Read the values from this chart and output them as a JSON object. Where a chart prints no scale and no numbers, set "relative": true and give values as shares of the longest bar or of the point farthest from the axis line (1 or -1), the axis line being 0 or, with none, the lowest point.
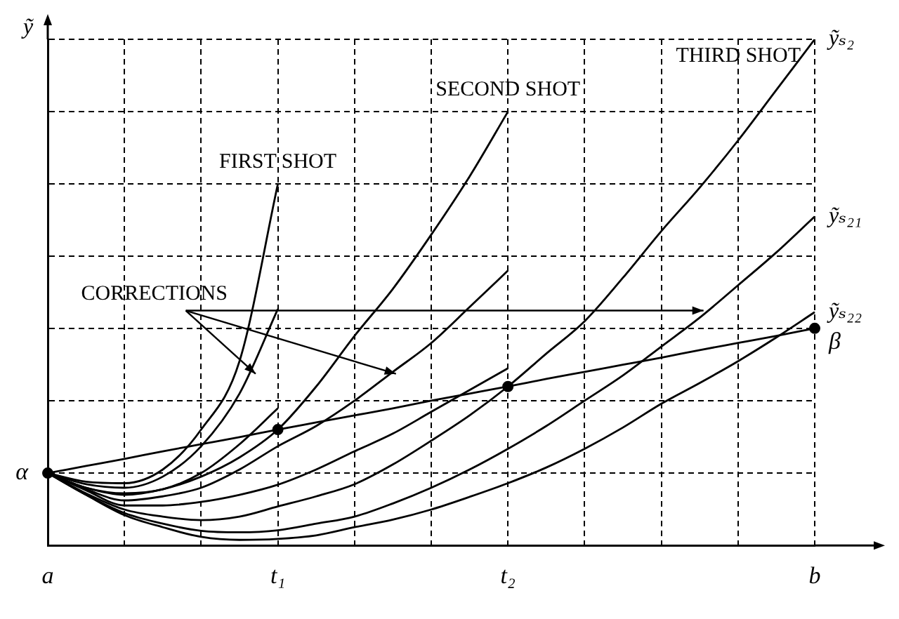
{
  "chart_data": {
    "type": "line",
    "ylabel": "ỹ",
    "relative": true,
    "grid": true,
    "categories": [
      "a",
      null,
      null,
      null,
      null,
      null,
      "t₁",
      null,
      null,
      null,
      null,
      null,
      "t₂",
      null,
      null,
      null,
      null,
      null,
      null,
      null,
      "b"
    ],
    "series": [
      {
        "color": "#000000",
        "values": [
          0.143,
          0.126,
          0.123,
          0.15,
          0.229,
          0.364,
          0.714,
          null,
          null,
          null,
          null,
          null,
          null,
          null,
          null,
          null,
          null,
          null,
          null,
          null,
          null
        ]
      },
      {
        "color": "#000000",
        "values": [
          0.143,
          0.121,
          0.114,
          0.136,
          0.196,
          0.3,
          0.467,
          null,
          null,
          null,
          null,
          null,
          null,
          null,
          null,
          null,
          null,
          null,
          null,
          null,
          null
        ]
      },
      {
        "color": "#000000",
        "values": [
          0.143,
          0.114,
          0.103,
          0.111,
          0.143,
          0.2,
          0.271,
          null,
          null,
          null,
          null,
          null,
          null,
          null,
          null,
          null,
          null,
          null,
          null,
          null,
          null
        ]
      },
      {
        "color": "#000000",
        "values": [
          0.143,
          0.114,
          0.1,
          0.111,
          0.136,
          0.174,
          0.229,
          0.314,
          0.414,
          0.507,
          0.614,
          0.729,
          0.857,
          null,
          null,
          null,
          null,
          null,
          null,
          null,
          null
        ]
      },
      {
        "color": "#000000",
        "values": [
          0.143,
          0.111,
          0.089,
          0.097,
          0.114,
          0.15,
          0.196,
          0.236,
          0.286,
          0.343,
          0.4,
          0.471,
          0.543,
          null,
          null,
          null,
          null,
          null,
          null,
          null,
          null
        ]
      },
      {
        "color": "#000000",
        "values": [
          0.143,
          0.109,
          0.079,
          0.079,
          0.086,
          0.1,
          0.12,
          0.15,
          0.186,
          0.221,
          0.264,
          0.307,
          0.35,
          null,
          null,
          null,
          null,
          null,
          null,
          null,
          null
        ]
      },
      {
        "name": "ỹₛ₂",
        "color": "#000000",
        "values": [
          0.143,
          0.103,
          0.071,
          0.057,
          0.05,
          0.057,
          0.077,
          0.097,
          0.121,
          0.16,
          0.207,
          0.257,
          0.314,
          0.379,
          0.443,
          0.529,
          0.621,
          0.707,
          0.8,
          0.9,
          1
        ]
      },
      {
        "name": "ỹₛ₂₁",
        "color": "#000000",
        "values": [
          0.143,
          0.1,
          0.064,
          0.043,
          0.029,
          0.026,
          0.03,
          0.043,
          0.057,
          0.083,
          0.114,
          0.15,
          0.191,
          0.236,
          0.286,
          0.336,
          0.393,
          0.45,
          0.514,
          0.579,
          0.65
        ]
      },
      {
        "name": "ỹₛ₂₂",
        "color": "#000000",
        "values": [
          0.143,
          0.1,
          0.06,
          0.036,
          0.017,
          0.011,
          0.013,
          0.02,
          0.036,
          0.051,
          0.071,
          0.096,
          0.123,
          0.154,
          0.191,
          0.233,
          0.28,
          0.321,
          0.364,
          0.411,
          0.461
        ]
      },
      {
        "color": "#000000",
        "values": [
          0.143,
          0.157,
          0.171,
          0.186,
          0.2,
          0.214,
          0.229,
          0.243,
          0.257,
          0.271,
          0.286,
          0.3,
          0.314,
          0.329,
          0.343,
          0.357,
          0.371,
          0.386,
          0.4,
          0.414,
          0.429
        ]
      },
      {
        "type": "scatter",
        "color": "#000000",
        "marker": "circle",
        "x": [
          "a",
          "t₁",
          "t₂",
          "b"
        ],
        "values": [
          0.143,
          0.229,
          0.314,
          0.429
        ]
      }
    ],
    "annotations": [
      {
        "text": "FIRST SHOT",
        "x": "t₁",
        "y": 0.714
      },
      {
        "text": "SECOND SHOT",
        "x": "t₂",
        "y": 0.857
      },
      {
        "text": "THIRD SHOT",
        "x": "b",
        "y": 1
      },
      "CORRECTIONS",
      {
        "text": "β",
        "x": "b",
        "y": 0.429
      },
      {
        "text": "α",
        "x": "a",
        "y": 0.143
      }
    ]
  }
}
